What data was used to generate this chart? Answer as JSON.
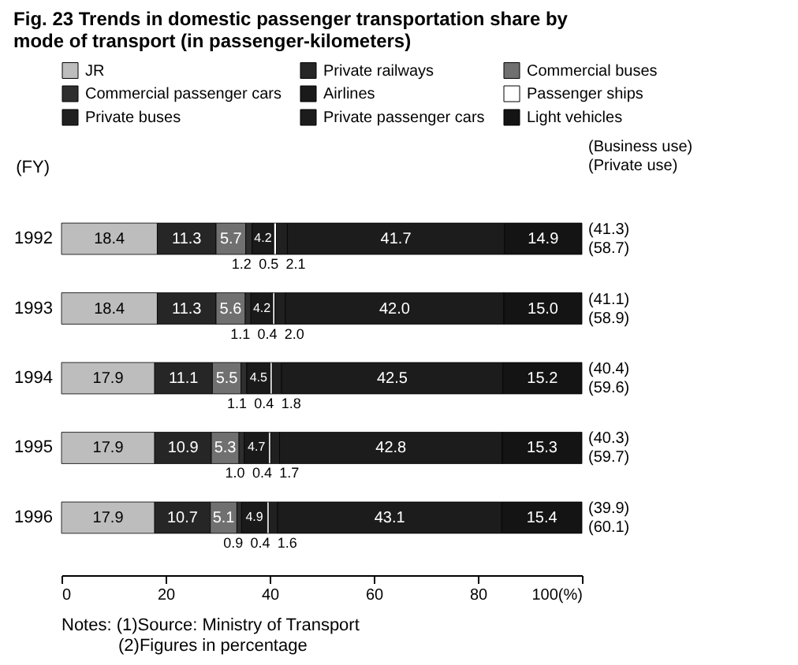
{
  "chart_data": {
    "type": "bar",
    "orientation": "horizontal",
    "stacked": true,
    "grid": false,
    "legend": "top",
    "title": "Fig. 23 Trends in domestic passenger transportation share by mode of transport (in passenger-kilometers)",
    "ylabel": "(FY)",
    "categories": [
      "1992",
      "1993",
      "1994",
      "1995",
      "1996"
    ],
    "xlim": [
      0,
      100
    ],
    "xticks": [
      0,
      20,
      40,
      60,
      80,
      {
        "value": 100,
        "label": "100(%)"
      }
    ],
    "series": [
      {
        "name": "JR",
        "color": "#bdbdbd",
        "values": [
          18.4,
          18.4,
          17.9,
          17.9,
          17.9
        ],
        "value_labels": [
          "18.4",
          "18.4",
          "17.9",
          "17.9",
          "17.9"
        ]
      },
      {
        "name": "Private railways",
        "color": "#262626",
        "values": [
          11.3,
          11.3,
          11.1,
          10.9,
          10.7
        ],
        "value_labels": [
          "11.3",
          "11.3",
          "11.1",
          "10.9",
          "10.7"
        ]
      },
      {
        "name": "Commercial buses",
        "color": "#707070",
        "values": [
          5.7,
          5.6,
          5.5,
          5.3,
          5.1
        ],
        "value_labels": [
          "5.7",
          "5.6",
          "5.5",
          "5.3",
          "5.1"
        ]
      },
      {
        "name": "Commercial passenger cars",
        "color": "#2e2e2e",
        "values": [
          1.2,
          1.1,
          1.1,
          1.0,
          0.9
        ],
        "value_labels": [
          "1.2",
          "1.1",
          "1.1",
          "1.0",
          "0.9"
        ]
      },
      {
        "name": "Airlines",
        "color": "#1a1a1a",
        "values": [
          4.2,
          4.2,
          4.5,
          4.7,
          4.9
        ],
        "value_labels": [
          "4.2",
          "4.2",
          "4.5",
          "4.7",
          "4.9"
        ]
      },
      {
        "name": "Passenger ships",
        "color": "#ffffff",
        "values": [
          0.5,
          0.4,
          0.4,
          0.4,
          0.4
        ],
        "value_labels": [
          "0.5",
          "0.4",
          "0.4",
          "0.4",
          "0.4"
        ]
      },
      {
        "name": "Private buses",
        "color": "#202020",
        "values": [
          2.1,
          2.0,
          1.8,
          1.7,
          1.6
        ],
        "value_labels": [
          "2.1",
          "2.0",
          "1.8",
          "1.7",
          "1.6"
        ]
      },
      {
        "name": "Private passenger cars",
        "color": "#1c1c1c",
        "values": [
          41.7,
          42.0,
          42.5,
          42.8,
          43.1
        ],
        "value_labels": [
          "41.7",
          "42.0",
          "42.5",
          "42.8",
          "43.1"
        ]
      },
      {
        "name": "Light vehicles",
        "color": "#141414",
        "values": [
          14.9,
          15.0,
          15.2,
          15.3,
          15.4
        ],
        "value_labels": [
          "14.9",
          "15.0",
          "15.2",
          "15.3",
          "15.4"
        ]
      }
    ],
    "annotations": [
      "(Business use)",
      "(Private use)",
      "Notes: (1)Source: Ministry of Transport",
      "(2)Figures in percentage",
      "(41.3)",
      "(58.7)",
      "(41.1)",
      "(58.9)",
      "(40.4)",
      "(59.6)",
      "(40.3)",
      "(59.7)",
      "(39.9)",
      "(60.1)"
    ]
  }
}
